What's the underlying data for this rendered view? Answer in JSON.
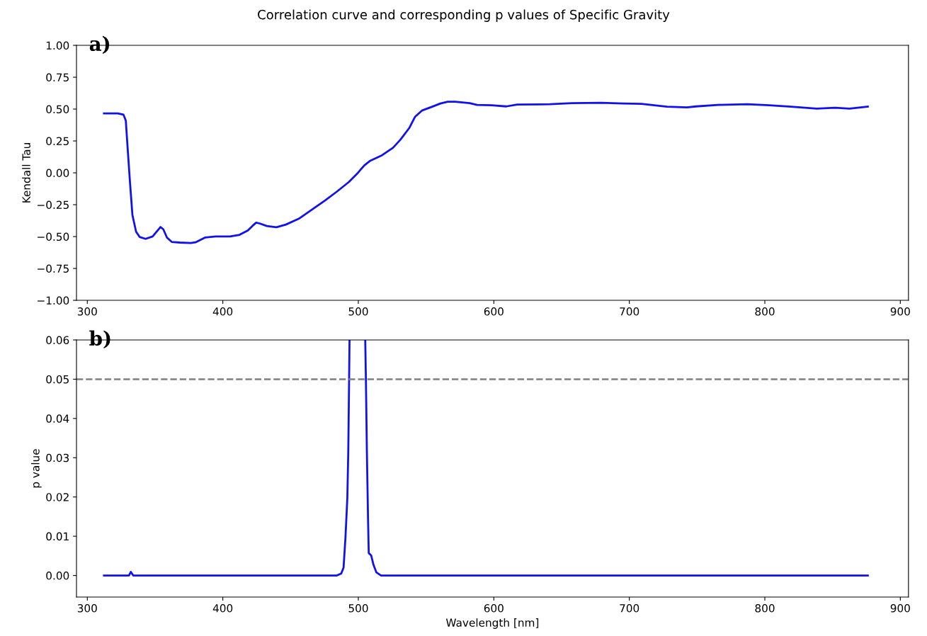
{
  "chart_data": [
    {
      "type": "line",
      "title": "Correlation curve and corresponding p values of Specific Gravity",
      "ylabel": "Kendall Tau",
      "annotations": [
        "a)"
      ],
      "x": [
        312.3,
        322.5,
        326.7,
        328.4,
        329.8,
        331.6,
        333.3,
        336,
        338.6,
        343,
        348.2,
        351.8,
        354,
        356.1,
        358.8,
        362.3,
        368.4,
        376.3,
        379.8,
        386.8,
        394.7,
        405.3,
        412.3,
        418.4,
        421.9,
        424.6,
        427.2,
        432.5,
        439.5,
        446.5,
        456.1,
        464.9,
        475.4,
        484.2,
        493,
        499.1,
        504.4,
        508.8,
        517.5,
        525.6,
        531,
        537.7,
        541.8,
        547.2,
        553.9,
        560.6,
        566,
        571.4,
        582.2,
        587.6,
        598.4,
        609.2,
        617.3,
        641.5,
        657.7,
        679.2,
        695.4,
        708.9,
        727.8,
        742.6,
        749.3,
        765.5,
        787.1,
        803.2,
        819.4,
        838.3,
        851.8,
        862.5,
        876
      ],
      "series": [
        {
          "color": "#1010f0",
          "values": [
            0.466,
            0.466,
            0.456,
            0.41,
            0.187,
            -0.091,
            -0.332,
            -0.462,
            -0.503,
            -0.518,
            -0.499,
            -0.453,
            -0.425,
            -0.443,
            -0.508,
            -0.542,
            -0.547,
            -0.551,
            -0.545,
            -0.508,
            -0.499,
            -0.499,
            -0.486,
            -0.453,
            -0.416,
            -0.391,
            -0.397,
            -0.417,
            -0.427,
            -0.406,
            -0.36,
            -0.295,
            -0.217,
            -0.147,
            -0.072,
            -0.007,
            0.058,
            0.095,
            0.138,
            0.197,
            0.259,
            0.353,
            0.439,
            0.49,
            0.516,
            0.544,
            0.558,
            0.558,
            0.547,
            0.533,
            0.53,
            0.521,
            0.536,
            0.538,
            0.547,
            0.55,
            0.544,
            0.541,
            0.519,
            0.513,
            0.521,
            0.533,
            0.538,
            0.53,
            0.519,
            0.504,
            0.51,
            0.504,
            0.519
          ]
        }
      ],
      "xlim": [
        292,
        906
      ],
      "xticks": [
        300,
        400,
        500,
        600,
        700,
        800,
        900
      ],
      "ylim": [
        -1,
        1
      ],
      "yticks": [
        {
          "value": -1,
          "label": "−1.00"
        },
        {
          "value": -0.75,
          "label": "−0.75"
        },
        {
          "value": -0.5,
          "label": "−0.50"
        },
        {
          "value": -0.25,
          "label": "−0.25"
        },
        {
          "value": 0,
          "label": "0.00"
        },
        {
          "value": 0.25,
          "label": "0.25"
        },
        {
          "value": 0.5,
          "label": "0.50"
        },
        {
          "value": 0.75,
          "label": "0.75"
        },
        {
          "value": 1,
          "label": "1.00"
        }
      ],
      "grid": false,
      "legend": false,
      "marker": "none",
      "line_style": "solid"
    },
    {
      "type": "line",
      "xlabel": "Wavelength [nm]",
      "ylabel": "p value",
      "annotations": [
        "b)"
      ],
      "x": [
        312.3,
        330.7,
        332.1,
        333.9,
        484.2,
        487.4,
        489.1,
        490.5,
        491.9,
        492.6,
        493.2,
        493.5,
        499,
        505.1,
        505.6,
        506.3,
        507.2,
        507.7,
        509.5,
        511.2,
        513.3,
        516.8,
        876
      ],
      "series": [
        {
          "color": "#1010f0",
          "values": [
            0,
            0,
            0.0009,
            0,
            0,
            0.0005,
            0.002,
            0.0096,
            0.0198,
            0.0319,
            0.05,
            0.06,
            null,
            0.06,
            0.05,
            0.032,
            0.0138,
            0.0057,
            0.0051,
            0.0027,
            0.0008,
            0,
            0
          ]
        }
      ],
      "xlim": [
        292,
        906
      ],
      "xticks": [
        300,
        400,
        500,
        600,
        700,
        800,
        900
      ],
      "ylim": [
        -0.0055,
        0.06
      ],
      "yticks": [
        {
          "value": 0,
          "label": "0.00"
        },
        {
          "value": 0.01,
          "label": "0.01"
        },
        {
          "value": 0.02,
          "label": "0.02"
        },
        {
          "value": 0.03,
          "label": "0.03"
        },
        {
          "value": 0.04,
          "label": "0.04"
        },
        {
          "value": 0.05,
          "label": "0.05"
        },
        {
          "value": 0.06,
          "label": "0.06"
        }
      ],
      "ref_lines": [
        {
          "axis": "y",
          "value": 0.05,
          "color": "#808080",
          "line_style": "dashed"
        }
      ],
      "grid": false,
      "legend": false,
      "marker": "none",
      "line_style": "solid"
    }
  ]
}
